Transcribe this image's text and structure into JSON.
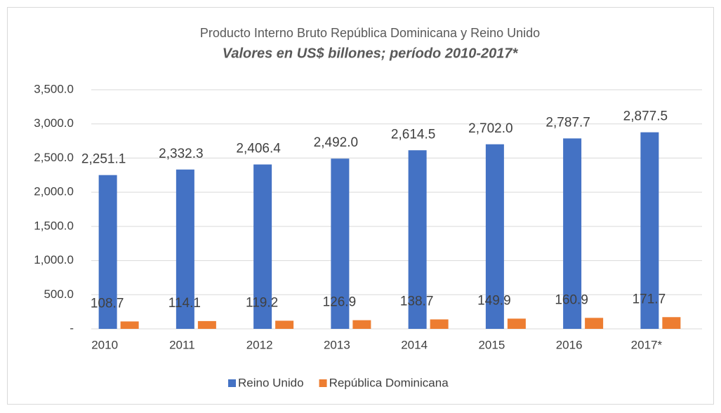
{
  "chart_data": {
    "type": "bar",
    "title": "Producto Interno Bruto República Dominicana y Reino Unido",
    "subtitle": "Valores en US$ billones; período 2010-2017*",
    "categories": [
      "2010",
      "2011",
      "2012",
      "2013",
      "2014",
      "2015",
      "2016",
      "2017*"
    ],
    "series": [
      {
        "name": "Reino Unido",
        "color": "#4472c4",
        "values": [
          2251.1,
          2332.3,
          2406.4,
          2492.0,
          2614.5,
          2702.0,
          2787.7,
          2877.5
        ],
        "value_labels": [
          "2,251.1",
          "2,332.3",
          "2,406.4",
          "2,492.0",
          "2,614.5",
          "2,702.0",
          "2,787.7",
          "2,877.5"
        ]
      },
      {
        "name": "República Dominicana",
        "color": "#ed7d31",
        "values": [
          108.7,
          114.1,
          119.2,
          126.9,
          138.7,
          149.9,
          160.9,
          171.7
        ],
        "value_labels": [
          "108.7",
          "114.1",
          "119.2",
          "126.9",
          "138.7",
          "149.9",
          "160.9",
          "171.7"
        ]
      }
    ],
    "ylim": [
      0,
      3500
    ],
    "yticks": [
      {
        "value": 0,
        "label": "-"
      },
      {
        "value": 500,
        "label": "500.0"
      },
      {
        "value": 1000,
        "label": "1,000.0"
      },
      {
        "value": 1500,
        "label": "1,500.0"
      },
      {
        "value": 2000,
        "label": "2,000.0"
      },
      {
        "value": 2500,
        "label": "2,500.0"
      },
      {
        "value": 3000,
        "label": "3,000.0"
      },
      {
        "value": 3500,
        "label": "3,500.0"
      }
    ],
    "grid": true,
    "legend": "bottom"
  }
}
